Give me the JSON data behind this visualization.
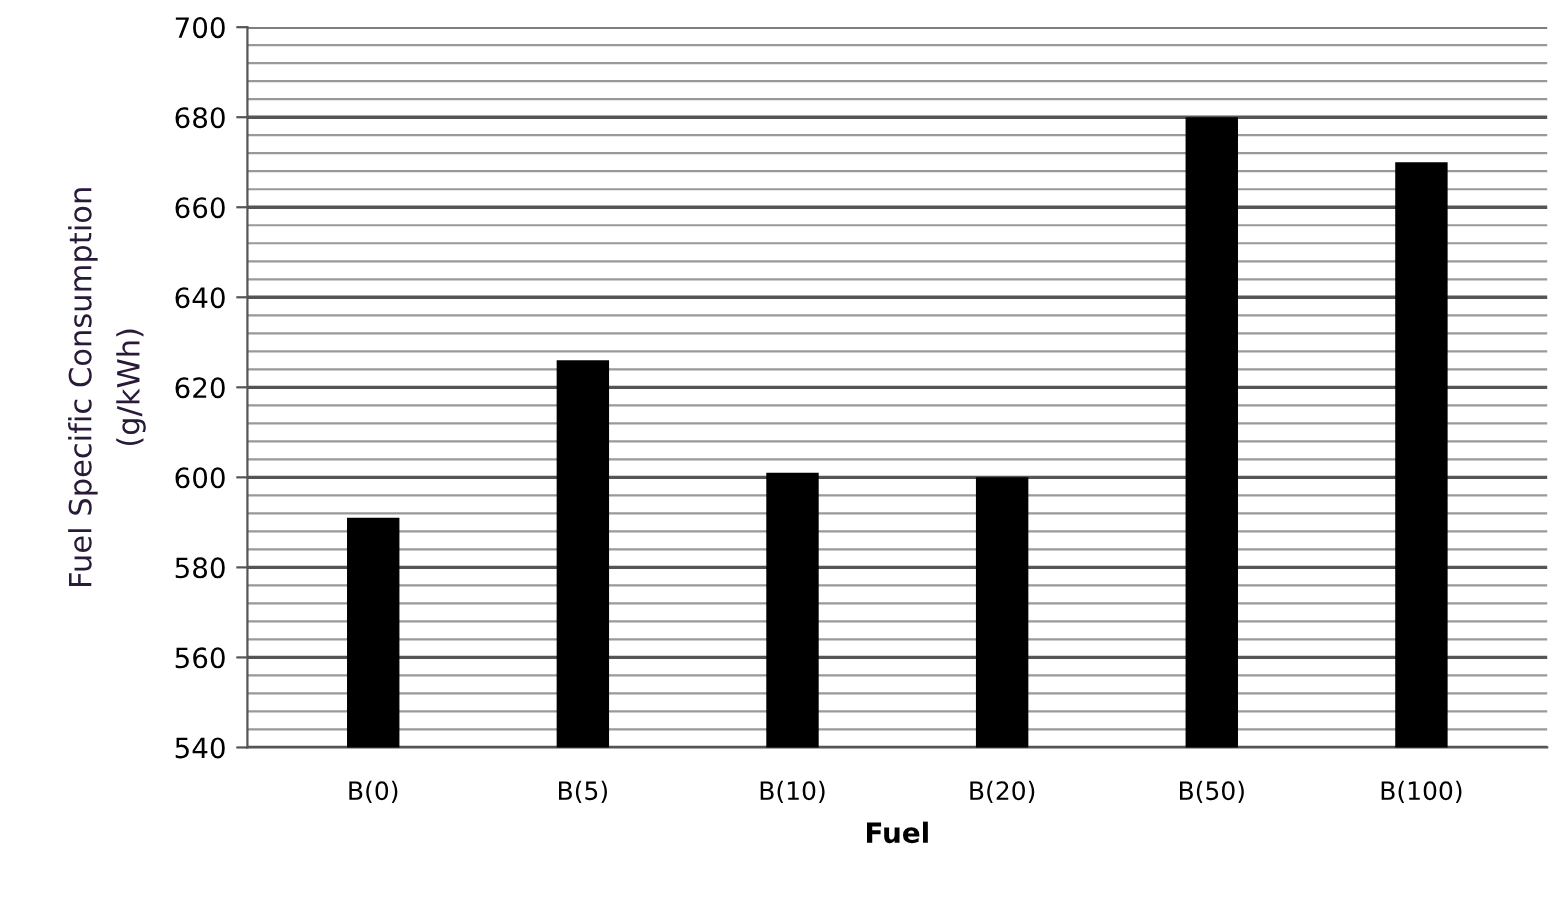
{
  "chart_data": {
    "type": "bar",
    "xlabel": "Fuel",
    "ylabel": "Fuel Specific Consumption\n(g/kWh)",
    "categories": [
      "B(0)",
      "B(5)",
      "B(10)",
      "B(20)",
      "B(50)",
      "B(100)"
    ],
    "values": [
      591,
      626,
      601,
      600,
      680,
      670
    ],
    "color": "#000000",
    "ylim": [
      540,
      700
    ],
    "yticks": [
      540,
      560,
      580,
      600,
      620,
      640,
      660,
      680,
      700
    ],
    "grid": "y"
  }
}
